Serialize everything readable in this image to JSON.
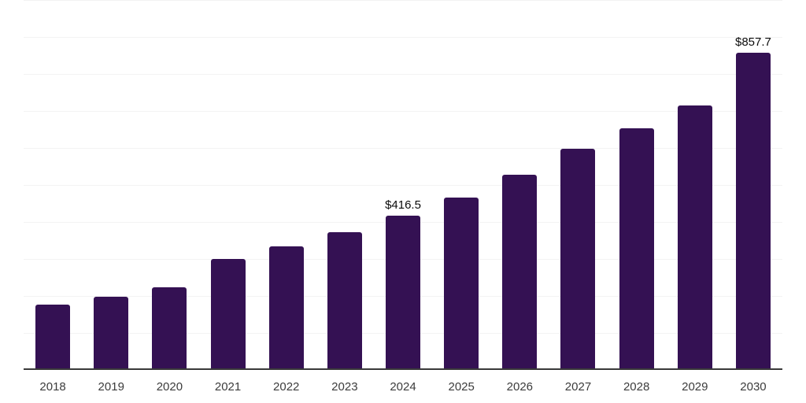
{
  "chart_data": {
    "type": "bar",
    "title": "",
    "xlabel": "",
    "ylabel": "",
    "categories": [
      "2018",
      "2019",
      "2020",
      "2021",
      "2022",
      "2023",
      "2024",
      "2025",
      "2026",
      "2027",
      "2028",
      "2029",
      "2030"
    ],
    "values": [
      176.0,
      197.5,
      223.0,
      299.5,
      334.0,
      372.5,
      416.5,
      466.5,
      527.0,
      597.0,
      653.0,
      715.0,
      857.7
    ],
    "data_labels": [
      {
        "category": "2024",
        "text": "$416.5"
      },
      {
        "category": "2030",
        "text": "$857.7"
      }
    ],
    "ylim": [
      0,
      1000
    ],
    "gridline_interval": 100,
    "grid": "on",
    "legend": "none",
    "bar_color": "#341153"
  },
  "colors": {
    "bar": "#341153",
    "background": "#ffffff",
    "gridline": "#f3f3f3",
    "axis_line": "#3a3a3a",
    "axis_label": "#3c3c3c",
    "data_label": "#0b0b0b"
  }
}
